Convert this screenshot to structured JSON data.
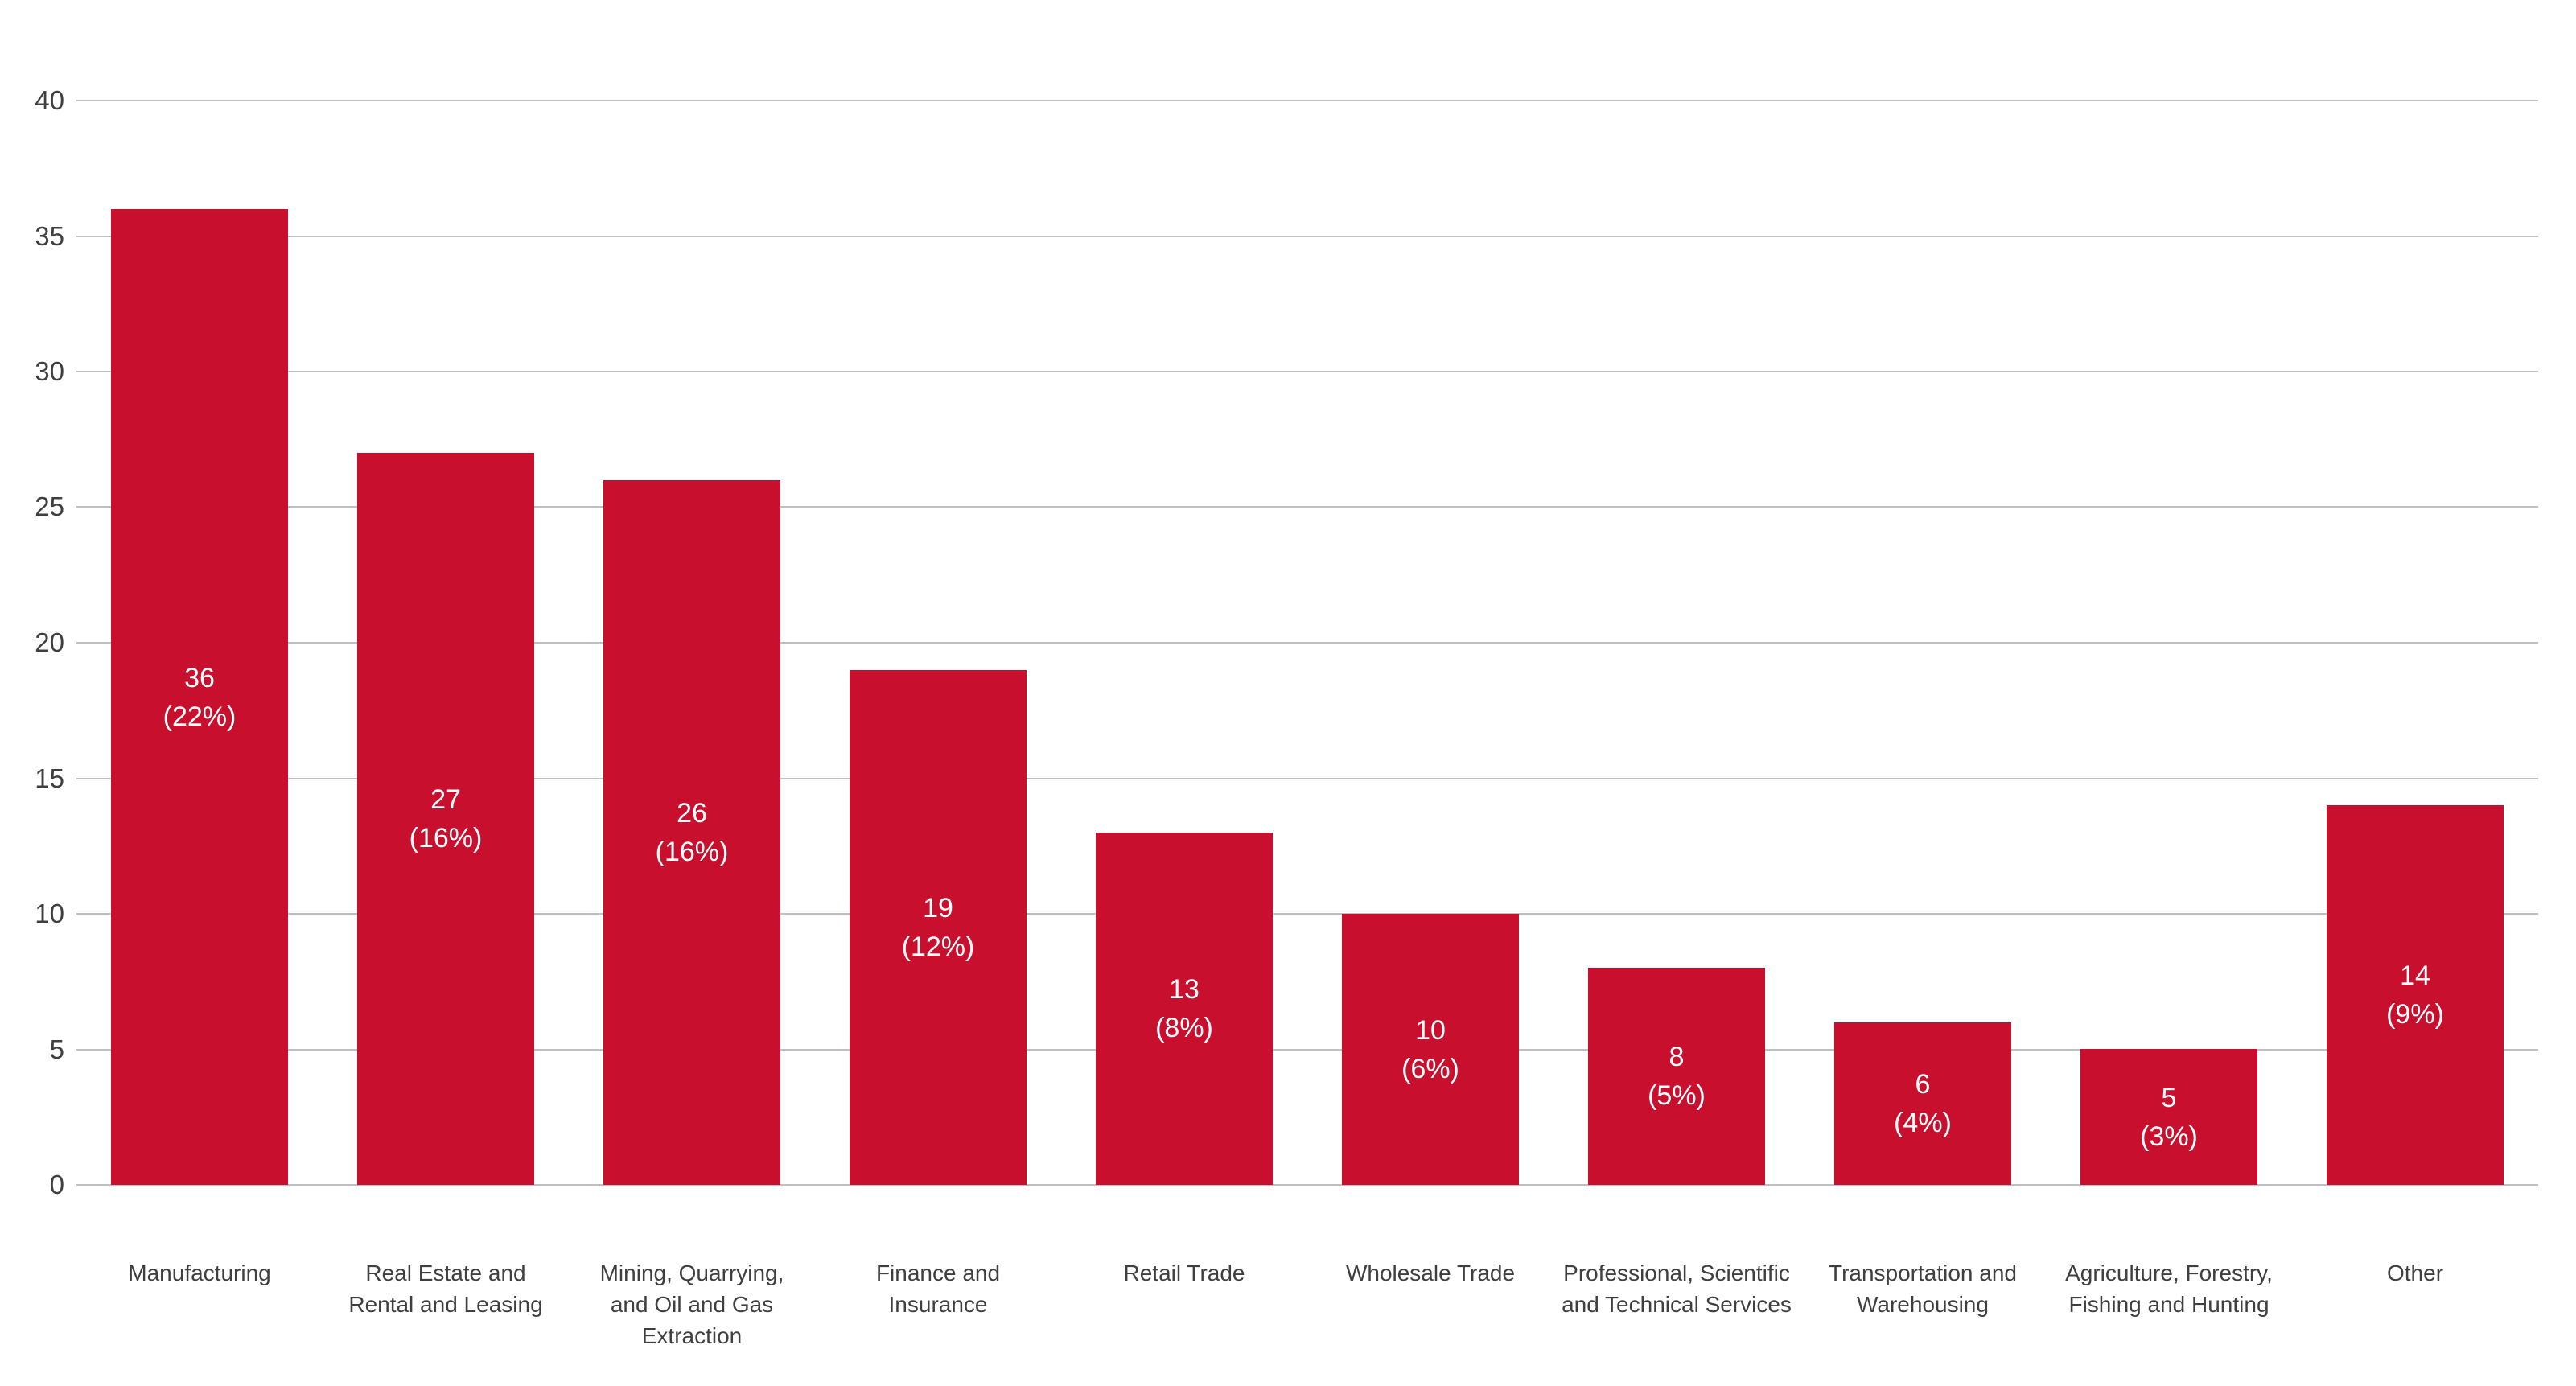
{
  "chart_data": {
    "type": "bar",
    "title": "",
    "xlabel": "",
    "ylabel": "",
    "categories": [
      "Manufacturing",
      "Real Estate and Rental and Leasing",
      "Mining, Quarrying, and Oil and Gas Extraction",
      "Finance and Insurance",
      "Retail Trade",
      "Wholesale Trade",
      "Professional, Scientific and Technical Services",
      "Transportation and Warehousing",
      "Agriculture, Forestry, Fishing and Hunting",
      "Other"
    ],
    "category_lines": [
      [
        "Manufacturing"
      ],
      [
        "Real Estate and",
        "Rental and Leasing"
      ],
      [
        "Mining, Quarrying,",
        "and Oil and Gas",
        "Extraction"
      ],
      [
        "Finance and",
        "Insurance"
      ],
      [
        "Retail Trade"
      ],
      [
        "Wholesale Trade"
      ],
      [
        "Professional, Scientific",
        "and Technical Services"
      ],
      [
        "Transportation and",
        "Warehousing"
      ],
      [
        "Agriculture, Forestry,",
        "Fishing and Hunting"
      ],
      [
        "Other"
      ]
    ],
    "values": [
      36,
      27,
      26,
      19,
      13,
      10,
      8,
      6,
      5,
      14
    ],
    "percent_labels": [
      "(22%)",
      "(16%)",
      "(16%)",
      "(12%)",
      "(8%)",
      "(6%)",
      "(5%)",
      "(4%)",
      "(3%)",
      "(9%)"
    ],
    "ylim": [
      0,
      40
    ],
    "yticks": [
      0,
      5,
      10,
      15,
      20,
      25,
      30,
      35,
      40
    ],
    "grid": "horizontal",
    "legend": "none",
    "bar_color": "#C8102E",
    "gridline_color": "#BFBFBF",
    "axis_text_color": "#3F3F3F",
    "bar_label_color": "#FFFFFF"
  }
}
